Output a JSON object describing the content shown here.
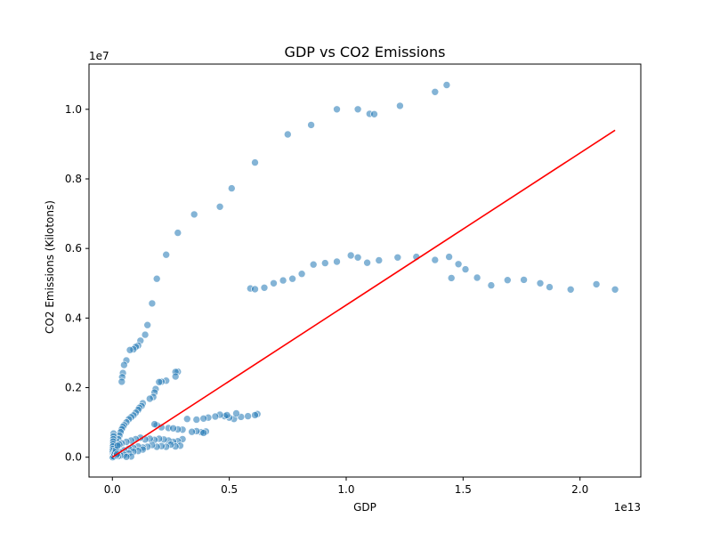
{
  "chart_data": {
    "type": "scatter",
    "title": "GDP vs CO2 Emissions",
    "xlabel": "GDP",
    "ylabel": "CO2 Emissions (Kilotons)",
    "x_offset_label": "1e13",
    "y_offset_label": "1e7",
    "x_scale": 10000000000000.0,
    "y_scale": 10000000.0,
    "xlim": [
      -1000000000000.0,
      22600000000000.0
    ],
    "ylim": [
      -570000.0,
      11300000.0
    ],
    "x_ticks": [
      0,
      5000000000000.0,
      10000000000000.0,
      15000000000000.0,
      20000000000000.0
    ],
    "x_tick_labels": [
      "0.0",
      "0.5",
      "1.0",
      "1.5",
      "2.0"
    ],
    "y_ticks": [
      0,
      2000000.0,
      4000000.0,
      6000000.0,
      8000000.0,
      10000000.0
    ],
    "y_tick_labels": [
      "0.0",
      "0.2",
      "0.4",
      "0.6",
      "0.8",
      "1.0"
    ],
    "grid": false,
    "point_color": "#1f77b4",
    "point_alpha": 0.55,
    "trend_line_color": "#ff0000",
    "trend_line": {
      "x": [
        0,
        21500000000000.0
      ],
      "y": [
        0,
        9400000.0
      ]
    },
    "points": [
      [
        13800000000000.0,
        10500000.0
      ],
      [
        14300000000000.0,
        10700000.0
      ],
      [
        12300000000000.0,
        10100000.0
      ],
      [
        11000000000000.0,
        9870000.0
      ],
      [
        11200000000000.0,
        9860000.0
      ],
      [
        10500000000000.0,
        10000000.0
      ],
      [
        9600000000000.0,
        10000000.0
      ],
      [
        8500000000000.0,
        9550000.0
      ],
      [
        7500000000000.0,
        9280000.0
      ],
      [
        6100000000000.0,
        8470000.0
      ],
      [
        5100000000000.0,
        7730000.0
      ],
      [
        4600000000000.0,
        7200000.0
      ],
      [
        3500000000000.0,
        6980000.0
      ],
      [
        2800000000000.0,
        6450000.0
      ],
      [
        2300000000000.0,
        5820000.0
      ],
      [
        1900000000000.0,
        5130000.0
      ],
      [
        1700000000000.0,
        4420000.0
      ],
      [
        1500000000000.0,
        3800000.0
      ],
      [
        1400000000000.0,
        3520000.0
      ],
      [
        1200000000000.0,
        3350000.0
      ],
      [
        1100000000000.0,
        3210000.0
      ],
      [
        1000000000000.0,
        3170000.0
      ],
      [
        900000000000.0,
        3100000.0
      ],
      [
        750000000000.0,
        3080000.0
      ],
      [
        600000000000.0,
        2780000.0
      ],
      [
        500000000000.0,
        2650000.0
      ],
      [
        450000000000.0,
        2420000.0
      ],
      [
        420000000000.0,
        2300000.0
      ],
      [
        400000000000.0,
        2170000.0
      ],
      [
        5900000000000.0,
        4850000.0
      ],
      [
        6100000000000.0,
        4830000.0
      ],
      [
        6500000000000.0,
        4870000.0
      ],
      [
        6900000000000.0,
        5000000.0
      ],
      [
        7300000000000.0,
        5080000.0
      ],
      [
        7700000000000.0,
        5130000.0
      ],
      [
        8100000000000.0,
        5270000.0
      ],
      [
        8600000000000.0,
        5540000.0
      ],
      [
        9100000000000.0,
        5580000.0
      ],
      [
        9600000000000.0,
        5620000.0
      ],
      [
        10200000000000.0,
        5800000.0
      ],
      [
        10500000000000.0,
        5740000.0
      ],
      [
        10900000000000.0,
        5590000.0
      ],
      [
        11400000000000.0,
        5660000.0
      ],
      [
        12200000000000.0,
        5740000.0
      ],
      [
        13000000000000.0,
        5760000.0
      ],
      [
        13800000000000.0,
        5670000.0
      ],
      [
        14400000000000.0,
        5760000.0
      ],
      [
        14800000000000.0,
        5550000.0
      ],
      [
        15100000000000.0,
        5400000.0
      ],
      [
        14500000000000.0,
        5150000.0
      ],
      [
        15600000000000.0,
        5160000.0
      ],
      [
        16200000000000.0,
        4940000.0
      ],
      [
        16900000000000.0,
        5090000.0
      ],
      [
        17600000000000.0,
        5100000.0
      ],
      [
        18300000000000.0,
        5000000.0
      ],
      [
        18700000000000.0,
        4890000.0
      ],
      [
        19600000000000.0,
        4820000.0
      ],
      [
        20700000000000.0,
        4970000.0
      ],
      [
        21500000000000.0,
        4820000.0
      ],
      [
        2800000000000.0,
        2460000.0
      ],
      [
        2700000000000.0,
        2450000.0
      ],
      [
        2700000000000.0,
        2320000.0
      ],
      [
        2300000000000.0,
        2200000.0
      ],
      [
        2100000000000.0,
        2170000.0
      ],
      [
        2000000000000.0,
        2160000.0
      ],
      [
        1850000000000.0,
        1960000.0
      ],
      [
        1800000000000.0,
        1860000.0
      ],
      [
        1750000000000.0,
        1730000.0
      ],
      [
        1600000000000.0,
        1680000.0
      ],
      [
        1300000000000.0,
        1550000.0
      ],
      [
        1250000000000.0,
        1470000.0
      ],
      [
        1150000000000.0,
        1420000.0
      ],
      [
        1100000000000.0,
        1360000.0
      ],
      [
        1000000000000.0,
        1280000.0
      ],
      [
        900000000000.0,
        1200000.0
      ],
      [
        800000000000.0,
        1150000.0
      ],
      [
        700000000000.0,
        1090000.0
      ],
      [
        600000000000.0,
        1000000.0
      ],
      [
        500000000000.0,
        920000.0
      ],
      [
        450000000000.0,
        870000.0
      ],
      [
        400000000000.0,
        800000.0
      ],
      [
        350000000000.0,
        720000.0
      ],
      [
        300000000000.0,
        620000.0
      ],
      [
        250000000000.0,
        520000.0
      ],
      [
        200000000000.0,
        440000.0
      ],
      [
        150000000000.0,
        350000.0
      ],
      [
        100000000000.0,
        270000.0
      ],
      [
        6200000000000.0,
        1240000.0
      ],
      [
        6100000000000.0,
        1210000.0
      ],
      [
        5800000000000.0,
        1180000.0
      ],
      [
        5500000000000.0,
        1160000.0
      ],
      [
        5200000000000.0,
        1100000.0
      ],
      [
        5000000000000.0,
        1140000.0
      ],
      [
        4800000000000.0,
        1180000.0
      ],
      [
        4600000000000.0,
        1220000.0
      ],
      [
        4400000000000.0,
        1170000.0
      ],
      [
        4100000000000.0,
        1140000.0
      ],
      [
        3900000000000.0,
        1110000.0
      ],
      [
        3600000000000.0,
        1080000.0
      ],
      [
        3200000000000.0,
        1100000.0
      ],
      [
        5300000000000.0,
        1260000.0
      ],
      [
        4900000000000.0,
        1210000.0
      ],
      [
        4000000000000.0,
        740000.0
      ],
      [
        3800000000000.0,
        720000.0
      ],
      [
        3600000000000.0,
        750000.0
      ],
      [
        3400000000000.0,
        730000.0
      ],
      [
        3000000000000.0,
        790000.0
      ],
      [
        2800000000000.0,
        800000.0
      ],
      [
        2400000000000.0,
        840000.0
      ],
      [
        2100000000000.0,
        860000.0
      ],
      [
        1900000000000.0,
        920000.0
      ],
      [
        1800000000000.0,
        950000.0
      ],
      [
        2600000000000.0,
        830000.0
      ],
      [
        3900000000000.0,
        700000.0
      ],
      [
        3000000000000.0,
        520000.0
      ],
      [
        2800000000000.0,
        460000.0
      ],
      [
        2600000000000.0,
        440000.0
      ],
      [
        2400000000000.0,
        480000.0
      ],
      [
        2200000000000.0,
        510000.0
      ],
      [
        2000000000000.0,
        530000.0
      ],
      [
        1800000000000.0,
        500000.0
      ],
      [
        1600000000000.0,
        530000.0
      ],
      [
        1400000000000.0,
        510000.0
      ],
      [
        1200000000000.0,
        560000.0
      ],
      [
        1000000000000.0,
        520000.0
      ],
      [
        800000000000.0,
        480000.0
      ],
      [
        600000000000.0,
        440000.0
      ],
      [
        400000000000.0,
        400000.0
      ],
      [
        300000000000.0,
        360000.0
      ],
      [
        2900000000000.0,
        330000.0
      ],
      [
        2700000000000.0,
        310000.0
      ],
      [
        2500000000000.0,
        360000.0
      ],
      [
        2300000000000.0,
        300000.0
      ],
      [
        2100000000000.0,
        320000.0
      ],
      [
        1900000000000.0,
        300000.0
      ],
      [
        1700000000000.0,
        350000.0
      ],
      [
        1500000000000.0,
        300000.0
      ],
      [
        1300000000000.0,
        280000.0
      ],
      [
        1100000000000.0,
        310000.0
      ],
      [
        900000000000.0,
        270000.0
      ],
      [
        700000000000.0,
        240000.0
      ],
      [
        500000000000.0,
        200000.0
      ],
      [
        300000000000.0,
        150000.0
      ],
      [
        1300000000000.0,
        220000.0
      ],
      [
        1100000000000.0,
        180000.0
      ],
      [
        900000000000.0,
        160000.0
      ],
      [
        700000000000.0,
        110000.0
      ],
      [
        500000000000.0,
        70000.0
      ],
      [
        350000000000.0,
        50000.0
      ],
      [
        250000000000.0,
        30000.0
      ],
      [
        800000000000.0,
        20000.0
      ],
      [
        600000000000.0,
        10000.0
      ],
      [
        50000000000.0,
        680000.0
      ],
      [
        50000000000.0,
        600000.0
      ],
      [
        40000000000.0,
        520000.0
      ],
      [
        30000000000.0,
        450000.0
      ],
      [
        30000000000.0,
        380000.0
      ],
      [
        20000000000.0,
        310000.0
      ],
      [
        20000000000.0,
        240000.0
      ],
      [
        10000000000.0,
        180000.0
      ],
      [
        10000000000.0,
        120000.0
      ],
      [
        10000000000.0,
        70000.0
      ],
      [
        0.0,
        30000.0
      ],
      [
        0.0,
        0.0
      ],
      [
        20000000000.0,
        0.0
      ],
      [
        60000000000.0,
        20000.0
      ],
      [
        80000000000.0,
        100000.0
      ],
      [
        120000000000.0,
        150000.0
      ],
      [
        150000000000.0,
        210000.0
      ],
      [
        180000000000.0,
        50000.0
      ],
      [
        200000000000.0,
        90000.0
      ],
      [
        220000000000.0,
        330000.0
      ]
    ]
  }
}
